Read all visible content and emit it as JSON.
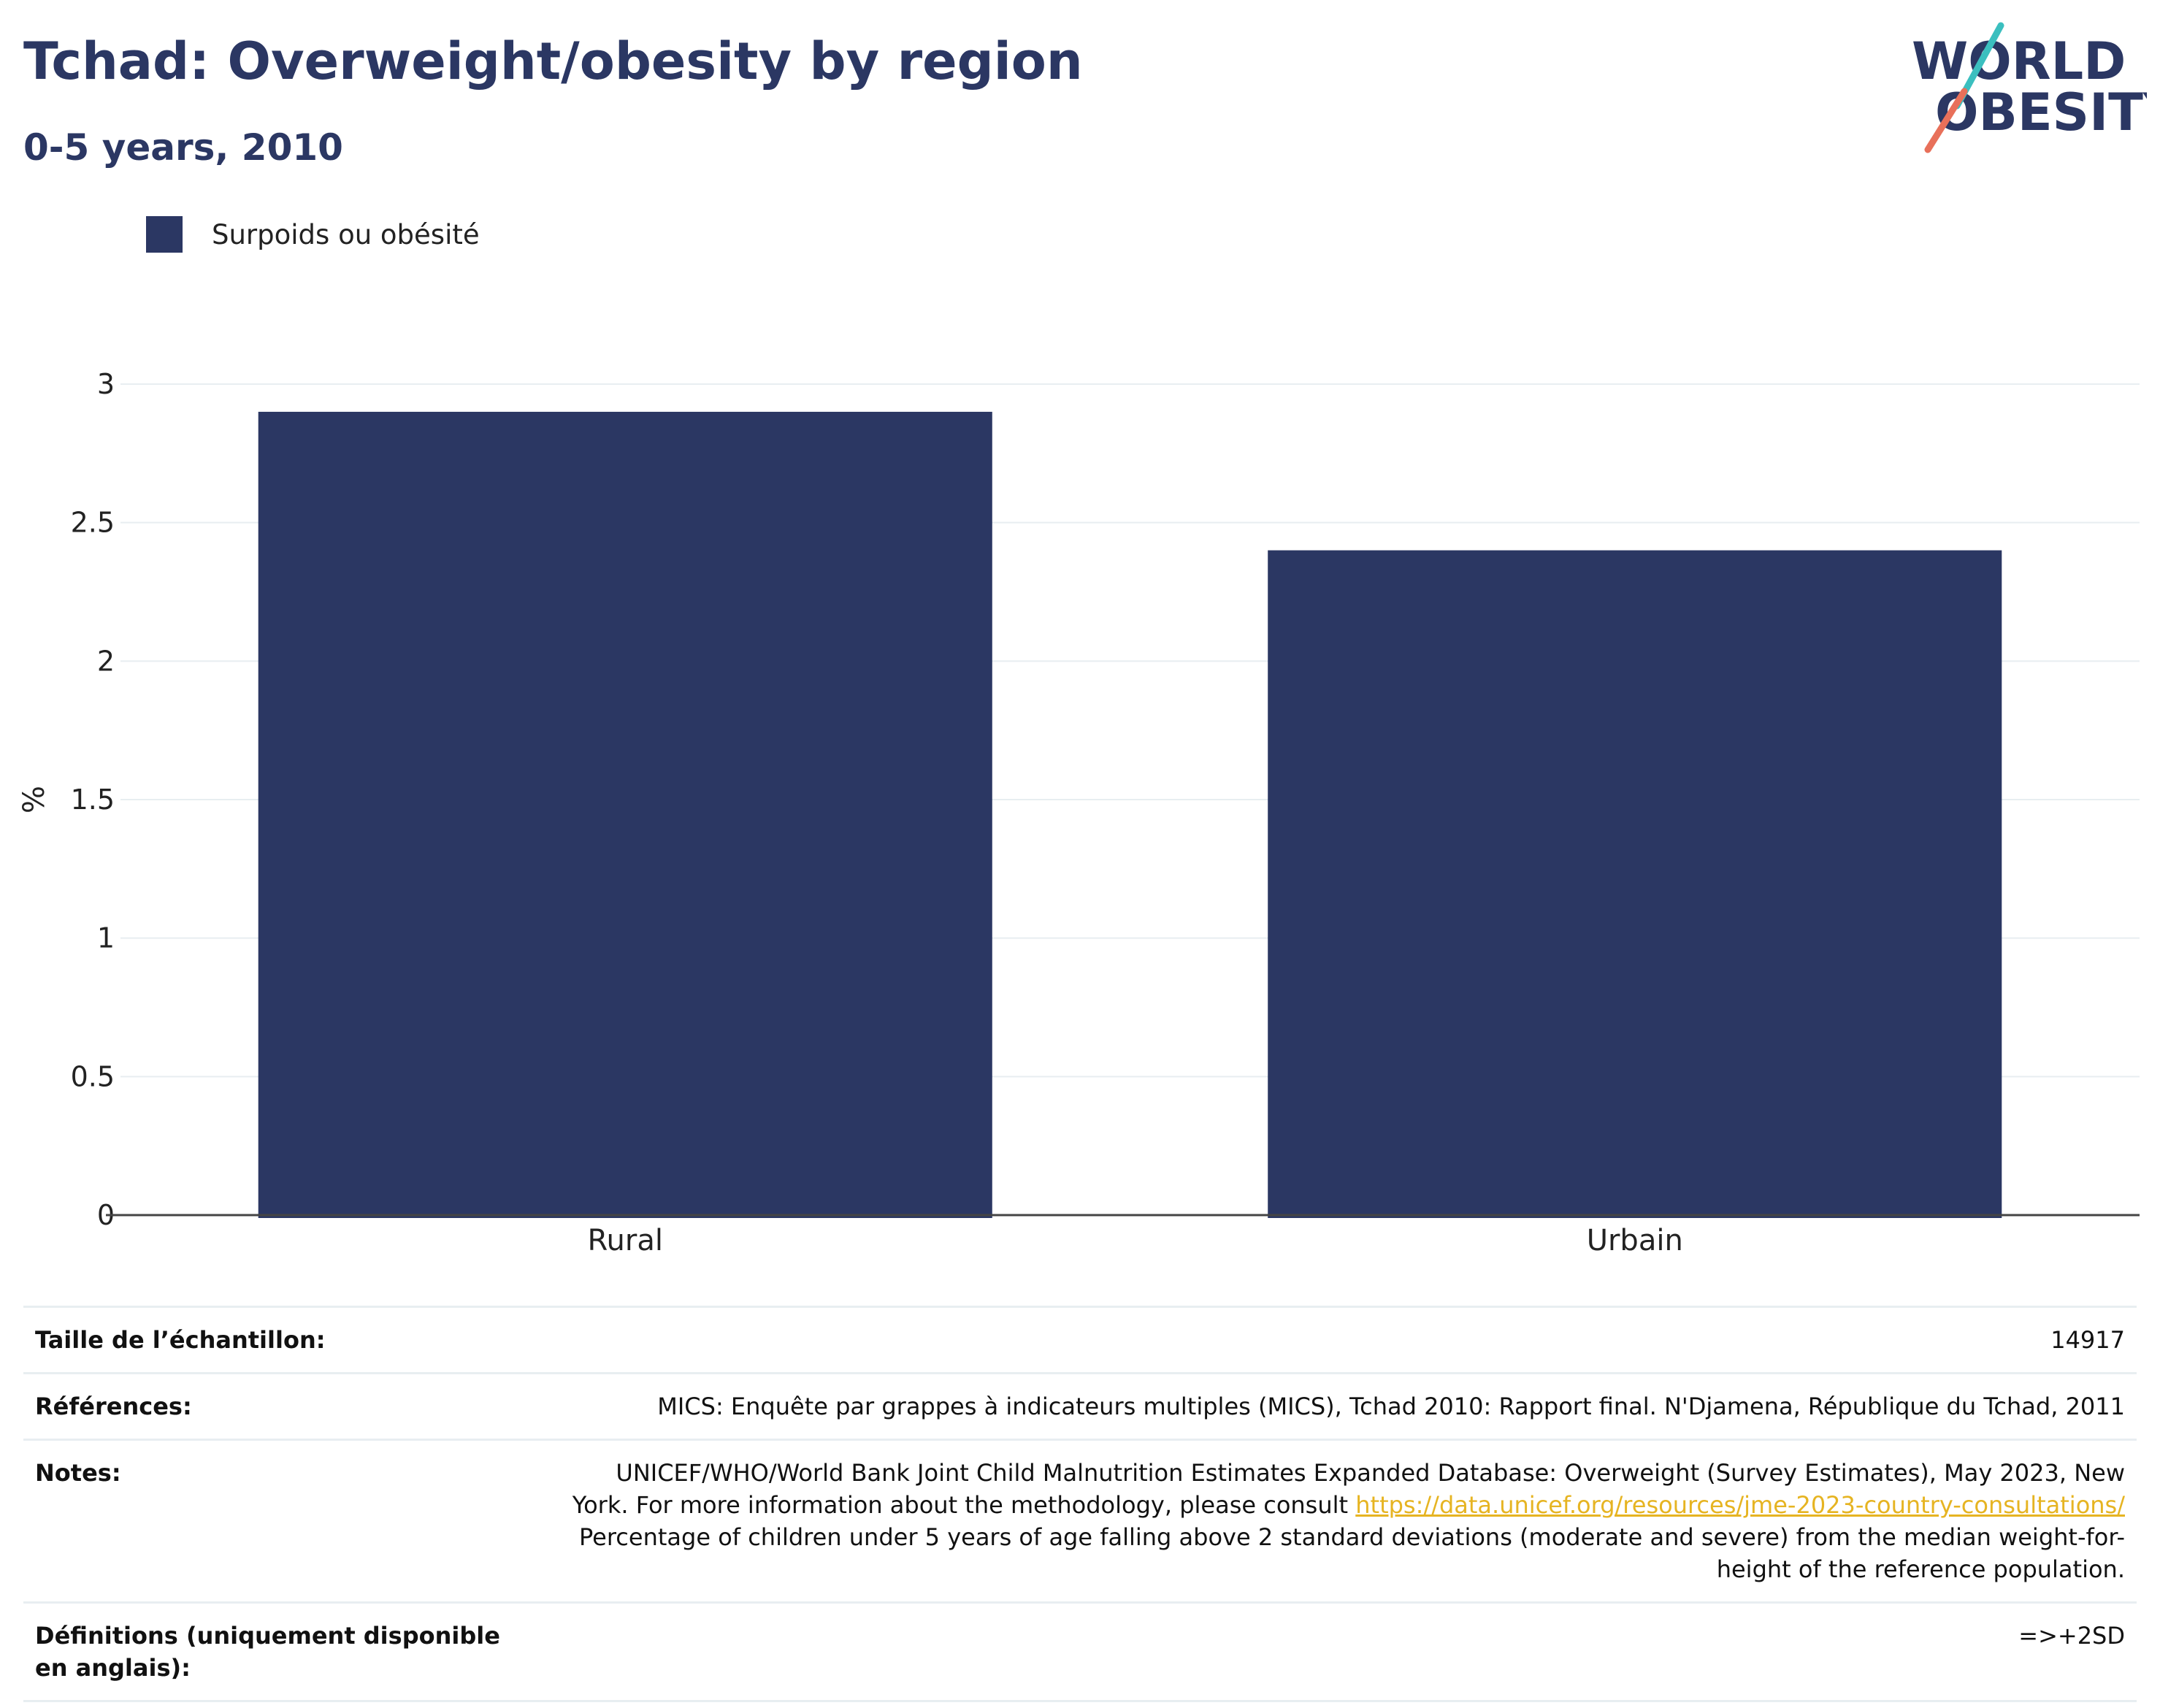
{
  "header": {
    "title": "Tchad: Overweight/obesity by region",
    "subtitle": "0-5 years, 2010"
  },
  "logo": {
    "line1": "WORLD",
    "line2": "OBESITY",
    "colors": {
      "text": "#2b3763",
      "accent_teal": "#3bbfbf",
      "accent_coral": "#e8705a"
    }
  },
  "legend": {
    "label": "Surpoids ou obésité",
    "color": "#2b3763"
  },
  "chart_data": {
    "type": "bar",
    "categories": [
      "Rural",
      "Urbain"
    ],
    "series": [
      {
        "name": "Surpoids ou obésité",
        "values": [
          2.9,
          2.4
        ],
        "color": "#2b3763"
      }
    ],
    "ylabel": "%",
    "xlabel": "",
    "ylim": [
      0,
      3
    ],
    "yticks": [
      "0",
      "0.5",
      "1",
      "1.5",
      "2",
      "2.5",
      "3"
    ],
    "grid": true,
    "legend_position": "top-left"
  },
  "info": {
    "sample_size": {
      "label": "Taille de l’échantillon:",
      "value": "14917"
    },
    "references": {
      "label": "Références:",
      "value": "MICS: Enquête par grappes à indicateurs multiples (MICS), Tchad 2010: Rapport final. N'Djamena, République du Tchad, 2011"
    },
    "notes": {
      "label": "Notes:",
      "text_before": "UNICEF/WHO/World Bank Joint Child Malnutrition Estimates Expanded Database: Overweight (Survey Estimates), May 2023, New York. For more information about the methodology, please consult ",
      "link": "https://data.unicef.org/resources/jme-2023-country-consultations/",
      "text_after": " Percentage of children under 5 years of age falling above 2 standard deviations (moderate and severe) from the median weight-for-height of the reference population."
    },
    "definitions": {
      "label": "Définitions (uniquement disponible en anglais):",
      "value": "=>+2SD"
    }
  }
}
